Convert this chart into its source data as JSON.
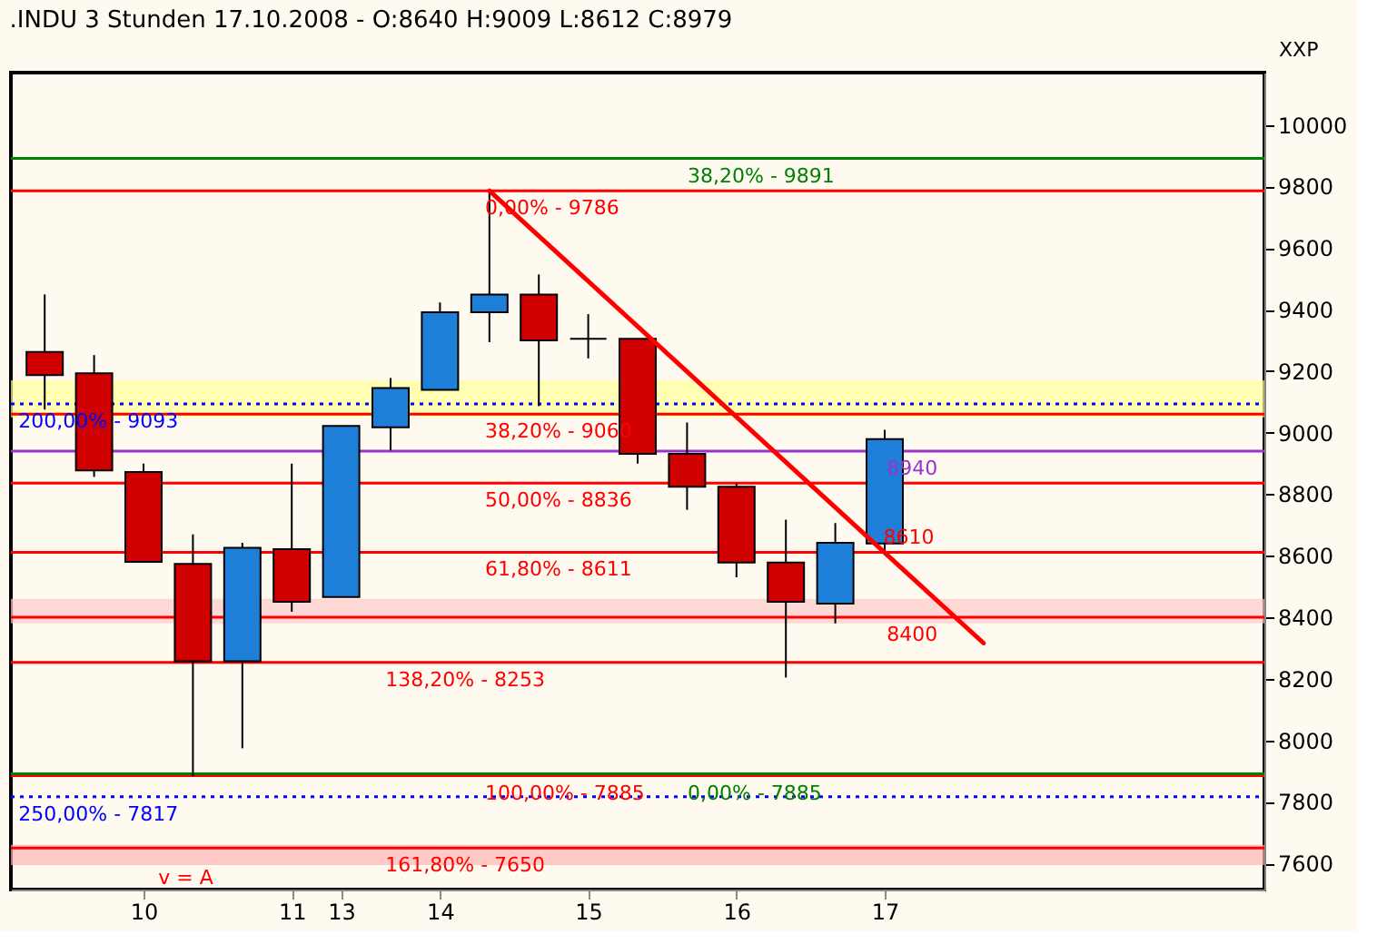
{
  "chart_data": {
    "type": "candlestick",
    "title": ".INDU 3 Stunden 17.10.2008 - O:8640 H:9009 L:8612 C:8979",
    "categories": [
      null,
      null,
      "10",
      null,
      null,
      "11",
      "13",
      null,
      "14",
      null,
      null,
      "15",
      null,
      null,
      "16",
      null,
      null,
      "17",
      null,
      null,
      null,
      null,
      null,
      null,
      null
    ],
    "ohlc": [
      [
        9262,
        9449,
        9075,
        9187
      ],
      [
        9193,
        9252,
        8856,
        8877
      ],
      [
        8872,
        8899,
        8580,
        8580
      ],
      [
        8573,
        8669,
        7883,
        8257
      ],
      [
        8257,
        8642,
        7974,
        8626
      ],
      [
        8621,
        8899,
        8418,
        8450
      ],
      [
        8466,
        9022,
        8466,
        9022
      ],
      [
        9017,
        9177,
        8942,
        9145
      ],
      [
        9139,
        9423,
        9139,
        9391
      ],
      [
        9391,
        9786,
        9294,
        9449
      ],
      [
        9449,
        9514,
        9086,
        9300
      ],
      [
        9305,
        9385,
        9241,
        9305
      ],
      [
        9305,
        9305,
        8899,
        8931
      ],
      [
        8931,
        9033,
        8749,
        8824
      ],
      [
        8824,
        8835,
        8530,
        8578
      ],
      [
        8578,
        8717,
        8204,
        8450
      ],
      [
        8444,
        8706,
        8380,
        8642
      ],
      [
        8640,
        9009,
        8612,
        8979
      ],
      null,
      null,
      null,
      null,
      null,
      null,
      null
    ],
    "colors": [
      "#d00000",
      "#d00000",
      "#d00000",
      "#d00000",
      "#1e7fd8",
      "#d00000",
      "#1e7fd8",
      "#1e7fd8",
      "#1e7fd8",
      "#1e7fd8",
      "#d00000",
      "#000000",
      "#d00000",
      "#d00000",
      "#d00000",
      "#d00000",
      "#1e7fd8",
      "#1e7fd8",
      null,
      null,
      null,
      null,
      null,
      null,
      null
    ],
    "series": [
      {
        "type": "line",
        "color": "#ff0000",
        "values": [
          null,
          null,
          null,
          null,
          null,
          null,
          null,
          null,
          null,
          9786,
          null,
          null,
          null,
          null,
          null,
          null,
          null,
          8610,
          null,
          8316,
          null,
          null,
          null,
          null,
          null
        ]
      }
    ],
    "ylim": [
      7515,
      10170
    ],
    "yticks": [
      7600,
      7800,
      8000,
      8200,
      8400,
      8600,
      8800,
      9000,
      9200,
      9400,
      9600,
      9800,
      10000
    ],
    "ref_lines": [
      {
        "axis": "y",
        "value": 9891,
        "color": "#008000"
      },
      {
        "axis": "y",
        "value": 9786,
        "color": "#ff0000"
      },
      {
        "axis": "y",
        "value": 9093,
        "color": "#0000ff",
        "line_style": "dotted"
      },
      {
        "axis": "y",
        "value": 9060,
        "color": "#ff0000"
      },
      {
        "axis": "y",
        "value": 8940,
        "label": "8940",
        "color": "#9933cc"
      },
      {
        "axis": "y",
        "value": 8836,
        "color": "#ff0000"
      },
      {
        "axis": "y",
        "value": 8611,
        "color": "#ff0000"
      },
      {
        "axis": "y",
        "value": 8400,
        "label": "8400",
        "color": "#ff0000"
      },
      {
        "axis": "y",
        "value": 8253,
        "color": "#ff0000"
      },
      {
        "axis": "y",
        "value": 7885,
        "color": "#ff0000"
      },
      {
        "axis": "y",
        "value": 7885,
        "color": "#008000"
      },
      {
        "axis": "y",
        "value": 7817,
        "color": "#0000ff",
        "line_style": "dotted"
      },
      {
        "axis": "y",
        "value": 7650,
        "color": "#ff0000"
      }
    ],
    "bands": [
      {
        "axis": "y",
        "from": 9050,
        "to": 9170,
        "color": "#ffff99"
      },
      {
        "axis": "y",
        "from": 8380,
        "to": 8460,
        "color": "#ffc8c8"
      },
      {
        "axis": "y",
        "from": 7595,
        "to": 7660,
        "color": "#ffb4b4"
      }
    ],
    "annotations": [
      {
        "text": "38,20% - 9891",
        "y": 9891
      },
      {
        "text": "0,00% - 9786",
        "y": 9786
      },
      {
        "text": "200,00% - 9093",
        "y": 9093
      },
      {
        "text": "38,20% - 9060",
        "y": 9060
      },
      {
        "text": "50,00% - 8836",
        "y": 8836
      },
      {
        "text": "61,80% - 8611",
        "y": 8611
      },
      {
        "text": "138,20% - 8253",
        "y": 8253
      },
      {
        "text": "100,00% - 7885",
        "y": 7885
      },
      {
        "text": "0,00% - 7885",
        "y": 7885
      },
      {
        "text": "250,00% - 7817",
        "y": 7817
      },
      {
        "text": "161,80% - 7650",
        "y": 7650
      },
      {
        "text": "8610",
        "y": 8610
      },
      "XXP",
      "v = A"
    ],
    "grid": false
  }
}
